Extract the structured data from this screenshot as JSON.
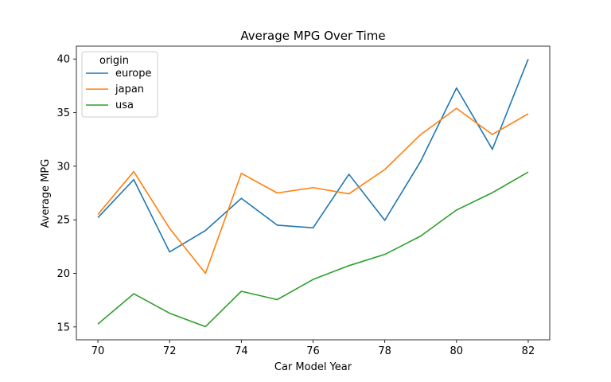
{
  "chart_data": {
    "type": "line",
    "title": "Average MPG Over Time",
    "xlabel": "Car Model Year",
    "ylabel": "Average MPG",
    "x": [
      70,
      71,
      72,
      73,
      74,
      75,
      76,
      77,
      78,
      79,
      80,
      81,
      82
    ],
    "xticks": [
      70,
      72,
      74,
      76,
      78,
      80,
      82
    ],
    "yticks": [
      15,
      20,
      25,
      30,
      35,
      40
    ],
    "xlim": [
      69.4,
      82.6
    ],
    "ylim": [
      13.8,
      41.2
    ],
    "grid": false,
    "legend": {
      "title": "origin",
      "position": "upper-left"
    },
    "series": [
      {
        "name": "europe",
        "color": "#1f77b4",
        "values": [
          25.2,
          28.75,
          22.0,
          24.0,
          27.0,
          24.5,
          24.25,
          29.25,
          24.95,
          30.45,
          37.3,
          31.58,
          40.0
        ]
      },
      {
        "name": "japan",
        "color": "#ff7f0e",
        "values": [
          25.5,
          29.5,
          24.2,
          20.0,
          29.33,
          27.5,
          28.0,
          27.42,
          29.69,
          32.95,
          35.4,
          32.96,
          34.89
        ]
      },
      {
        "name": "usa",
        "color": "#2ca02c",
        "values": [
          15.27,
          18.1,
          16.28,
          15.03,
          18.33,
          17.55,
          19.43,
          20.72,
          21.77,
          23.48,
          25.91,
          27.53,
          29.45
        ]
      }
    ]
  }
}
